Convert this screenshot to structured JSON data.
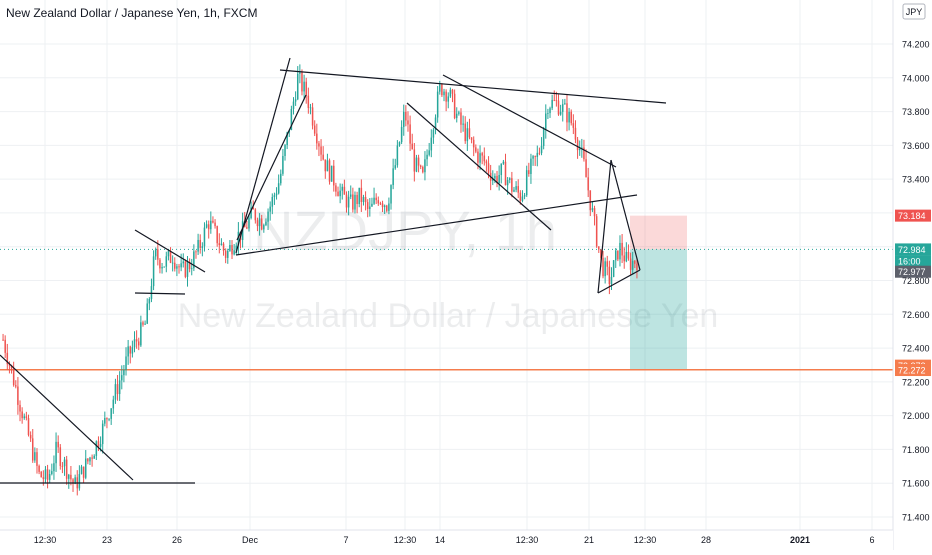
{
  "header": {
    "symbol_title": "New Zealand Dollar / Japanese Yen, 1h, FXCM",
    "currency_badge": "JPY"
  },
  "watermark": {
    "ticker": "NZDJPY, 1h",
    "description": "New Zealand Dollar / Japanese Yen"
  },
  "colors": {
    "bull": "#26a69a",
    "bear": "#ef5350",
    "grid": "#eef0f3",
    "axis_text": "#131722",
    "horizontal_line": "#f57c4d",
    "stop_zone": "rgba(239,83,80,0.22)",
    "target_zone": "rgba(38,166,154,0.30)",
    "current_price_line": "#26a69a",
    "tag_red": "#ef5350",
    "tag_orange": "#f57c4d",
    "tag_dark": "#5d606b",
    "tag_teal": "#26a69a"
  },
  "chart_data": {
    "type": "candlestick",
    "title": "New Zealand Dollar / Japanese Yen, 1h, FXCM",
    "ylim": [
      71.36,
      74.32
    ],
    "y_ticks": [
      "74.200",
      "74.000",
      "73.800",
      "73.600",
      "73.400",
      "73.200",
      "73.000",
      "72.800",
      "72.600",
      "72.400",
      "72.200",
      "72.000",
      "71.800",
      "71.600",
      "71.400"
    ],
    "x_tick_labels": [
      "12:30",
      "23",
      "26",
      "Dec",
      "7",
      "12:30",
      "14",
      "12:30",
      "21",
      "12:30",
      "28",
      "2021",
      "6"
    ],
    "grid": true,
    "price_path": [
      72.45,
      72.25,
      72.05,
      71.85,
      71.65,
      71.62,
      71.8,
      71.7,
      71.58,
      71.68,
      71.78,
      71.9,
      72.05,
      72.2,
      72.35,
      72.45,
      72.55,
      72.95,
      72.9,
      72.95,
      72.85,
      72.9,
      73.0,
      73.15,
      73.05,
      72.95,
      73.05,
      73.1,
      73.2,
      73.15,
      73.25,
      73.4,
      73.7,
      74.0,
      73.9,
      73.7,
      73.5,
      73.4,
      73.3,
      73.25,
      73.3,
      73.2,
      73.3,
      73.25,
      73.5,
      73.8,
      73.5,
      73.4,
      73.7,
      73.95,
      73.9,
      73.75,
      73.65,
      73.55,
      73.5,
      73.4,
      73.45,
      73.35,
      73.3,
      73.45,
      73.55,
      73.85,
      73.85,
      73.8,
      73.7,
      73.5,
      73.2,
      72.9,
      72.8,
      73.0,
      72.9,
      72.92
    ],
    "price_tags": [
      {
        "label": "73.184",
        "price": 73.184,
        "color_key": "tag_red"
      },
      {
        "label": "72.984",
        "price": 72.984,
        "color_key": "tag_teal"
      },
      {
        "label": "16:00",
        "price": 72.914,
        "color_key": "tag_teal"
      },
      {
        "label": "72.977",
        "price": 72.852,
        "color_key": "tag_dark"
      },
      {
        "label": "72.272",
        "price": 72.296,
        "color_key": "tag_orange"
      },
      {
        "label": "72.272",
        "price": 72.27,
        "color_key": "tag_orange"
      }
    ],
    "horizontal_line_price": 72.272,
    "position": {
      "entry": 72.984,
      "stop": 73.184,
      "target": 72.272
    }
  }
}
